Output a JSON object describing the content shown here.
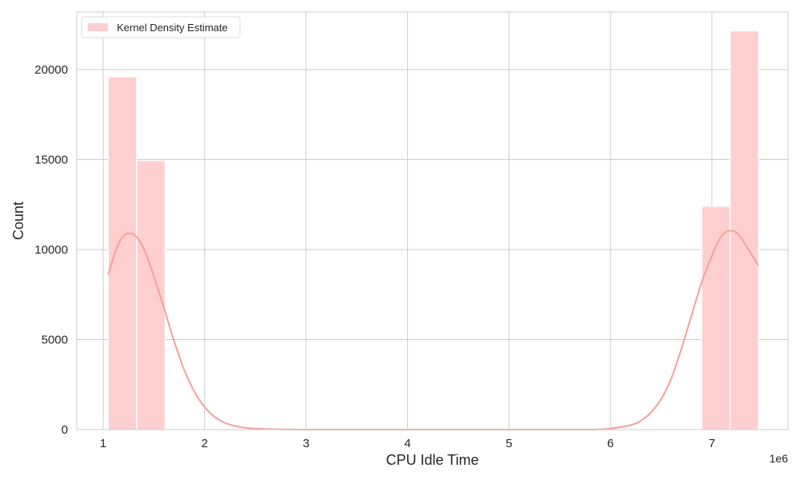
{
  "chart_data": {
    "type": "histogram",
    "xlabel": "CPU Idle Time",
    "ylabel": "Count",
    "x_offset_label": "1e6",
    "x_scale": 1000000,
    "xlim": [
      0.74,
      7.75
    ],
    "ylim": [
      0,
      23200
    ],
    "x_ticks": [
      1,
      2,
      3,
      4,
      5,
      6,
      7
    ],
    "x_tick_labels": [
      "1",
      "2",
      "3",
      "4",
      "5",
      "6",
      "7"
    ],
    "y_ticks": [
      0,
      5000,
      10000,
      15000,
      20000
    ],
    "y_tick_labels": [
      "0",
      "5000",
      "10000",
      "15000",
      "20000"
    ],
    "grid": true,
    "legend": {
      "position": "top-left",
      "entries": [
        "Kernel Density Estimate"
      ]
    },
    "colors": {
      "bar": "#ffcfcf",
      "kde": "#f4a09c",
      "grid": "#cccccc",
      "axes_edge": "#cccccc"
    },
    "bins": [
      {
        "x0": 1.05,
        "x1": 1.33,
        "count": 19600
      },
      {
        "x0": 1.33,
        "x1": 1.61,
        "count": 14950
      },
      {
        "x0": 6.9,
        "x1": 7.18,
        "count": 12400
      },
      {
        "x0": 7.18,
        "x1": 7.46,
        "count": 22150
      }
    ],
    "kde": {
      "x": [
        1.05,
        1.1,
        1.15,
        1.2,
        1.25,
        1.3,
        1.35,
        1.4,
        1.45,
        1.5,
        1.55,
        1.6,
        1.7,
        1.8,
        1.9,
        2.0,
        2.1,
        2.2,
        2.3,
        2.4,
        2.6,
        3.0,
        4.0,
        5.0,
        5.8,
        6.0,
        6.2,
        6.3,
        6.4,
        6.5,
        6.6,
        6.7,
        6.8,
        6.9,
        7.0,
        7.05,
        7.1,
        7.15,
        7.2,
        7.25,
        7.3,
        7.35,
        7.4,
        7.46
      ],
      "y": [
        8600,
        9550,
        10300,
        10750,
        10900,
        10850,
        10550,
        10050,
        9350,
        8500,
        7650,
        6750,
        4900,
        3300,
        2100,
        1250,
        700,
        380,
        200,
        100,
        30,
        0,
        0,
        0,
        0,
        60,
        250,
        500,
        950,
        1700,
        2850,
        4500,
        6350,
        8200,
        9650,
        10300,
        10800,
        11000,
        11050,
        10900,
        10550,
        10100,
        9650,
        9100
      ]
    }
  }
}
